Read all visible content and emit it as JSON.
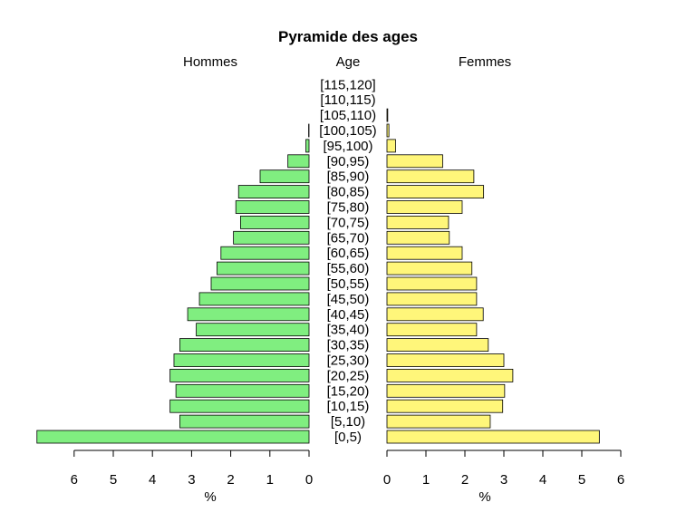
{
  "chart_data": {
    "type": "bar",
    "subtype": "population-pyramid",
    "title": "Pyramide des ages",
    "center_label": "Age",
    "left_label": "Hommes",
    "right_label": "Femmes",
    "xlabel_left": "%",
    "xlabel_right": "%",
    "left_xlim": [
      0,
      6
    ],
    "right_xlim": [
      0,
      6
    ],
    "left_ticks": [
      "0",
      "1",
      "2",
      "3",
      "4",
      "5",
      "6"
    ],
    "right_ticks": [
      "0",
      "1",
      "2",
      "3",
      "4",
      "5",
      "6"
    ],
    "categories": [
      "[0,5)",
      "[5,10)",
      "[10,15)",
      "[15,20)",
      "[20,25)",
      "[25,30)",
      "[30,35)",
      "[35,40)",
      "[40,45)",
      "[45,50)",
      "[50,55)",
      "[55,60)",
      "[60,65)",
      "[65,70)",
      "[70,75)",
      "[75,80)",
      "[80,85)",
      "[85,90)",
      "[90,95)",
      "[95,100)",
      "[100,105)",
      "[105,110)",
      "[110,115)",
      "[115,120]"
    ],
    "series": [
      {
        "name": "Hommes",
        "side": "left",
        "color": "#80ee80",
        "values": [
          6.95,
          3.3,
          3.55,
          3.4,
          3.55,
          3.45,
          3.3,
          2.88,
          3.1,
          2.8,
          2.5,
          2.35,
          2.25,
          1.93,
          1.75,
          1.87,
          1.8,
          1.25,
          0.54,
          0.08,
          0.01,
          0.0,
          0.0,
          0.0
        ]
      },
      {
        "name": "Femmes",
        "side": "right",
        "color": "#fff67a",
        "values": [
          5.45,
          2.65,
          2.97,
          3.02,
          3.23,
          3.0,
          2.6,
          2.3,
          2.47,
          2.3,
          2.3,
          2.18,
          1.93,
          1.6,
          1.58,
          1.93,
          2.48,
          2.23,
          1.43,
          0.22,
          0.05,
          0.02,
          0.0,
          0.0
        ]
      }
    ],
    "grid": false,
    "legend": "none"
  }
}
